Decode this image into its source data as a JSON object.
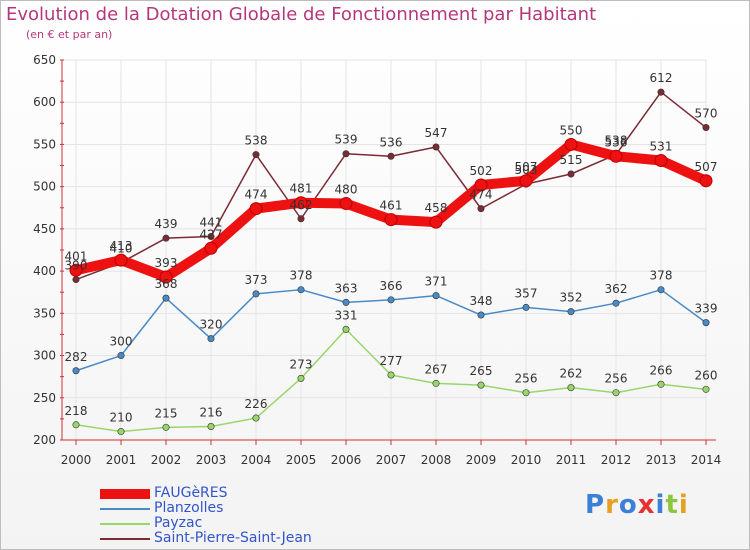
{
  "title": "Evolution de la Dotation Globale de Fonctionnement par Habitant",
  "subtitle": "(en € et par an)",
  "logo": "Proxiti",
  "colors": {
    "title": "#b5377b",
    "grid": "#e4e4e4",
    "axis": "#cc3333"
  },
  "chart_data": {
    "type": "line",
    "title": "Evolution de la Dotation Globale de Fonctionnement par Habitant",
    "subtitle": "(en € et par an)",
    "xlabel": "",
    "ylabel": "",
    "ylim": [
      200,
      650
    ],
    "yticks": [
      200,
      250,
      300,
      350,
      400,
      450,
      500,
      550,
      600,
      650
    ],
    "categories": [
      "2000",
      "2001",
      "2002",
      "2003",
      "2004",
      "2005",
      "2006",
      "2007",
      "2008",
      "2009",
      "2010",
      "2011",
      "2012",
      "2013",
      "2014"
    ],
    "grid": true,
    "legend_position": "bottom-left",
    "series": [
      {
        "name": "Saint-Pierre-Saint-Jean",
        "color": "#7a2b33",
        "values": [
          390,
          410,
          439,
          441,
          538,
          462,
          539,
          536,
          547,
          474,
          503,
          515,
          538,
          612,
          570
        ],
        "labels": [
          "390",
          "410",
          "439",
          "441",
          "538",
          "462",
          "539",
          "536",
          "547",
          "474",
          "503",
          "515",
          "538",
          "612",
          "570"
        ]
      },
      {
        "name": "Planzolles",
        "color": "#4a8ac4",
        "values": [
          282,
          300,
          368,
          320,
          373,
          378,
          363,
          366,
          371,
          348,
          357,
          352,
          362,
          378,
          339
        ],
        "labels": [
          "282",
          "300",
          "368",
          "320",
          "373",
          "378",
          "363",
          "366",
          "371",
          "348",
          "357",
          "352",
          "362",
          "378",
          "339"
        ]
      },
      {
        "name": "Payzac",
        "color": "#99d66a",
        "values": [
          218,
          210,
          215,
          216,
          226,
          273,
          331,
          277,
          267,
          265,
          256,
          262,
          256,
          266,
          260
        ],
        "labels": [
          "218",
          "210",
          "215",
          "216",
          "226",
          "273",
          "331",
          "277",
          "267",
          "265",
          "256",
          "262",
          "256",
          "266",
          "260"
        ]
      },
      {
        "name": "FAUGèRES",
        "color": "#ee1111",
        "values": [
          401,
          413,
          393,
          427,
          474,
          481,
          480,
          461,
          458,
          502,
          507,
          550,
          536,
          531,
          507
        ],
        "labels": [
          "401",
          "413",
          "393",
          "427",
          "474",
          "481",
          "480",
          "461",
          "458",
          "502",
          "507",
          "550",
          "536",
          "531",
          "507"
        ]
      }
    ],
    "legend": [
      "FAUGèRES",
      "Planzolles",
      "Payzac",
      "Saint-Pierre-Saint-Jean"
    ]
  }
}
